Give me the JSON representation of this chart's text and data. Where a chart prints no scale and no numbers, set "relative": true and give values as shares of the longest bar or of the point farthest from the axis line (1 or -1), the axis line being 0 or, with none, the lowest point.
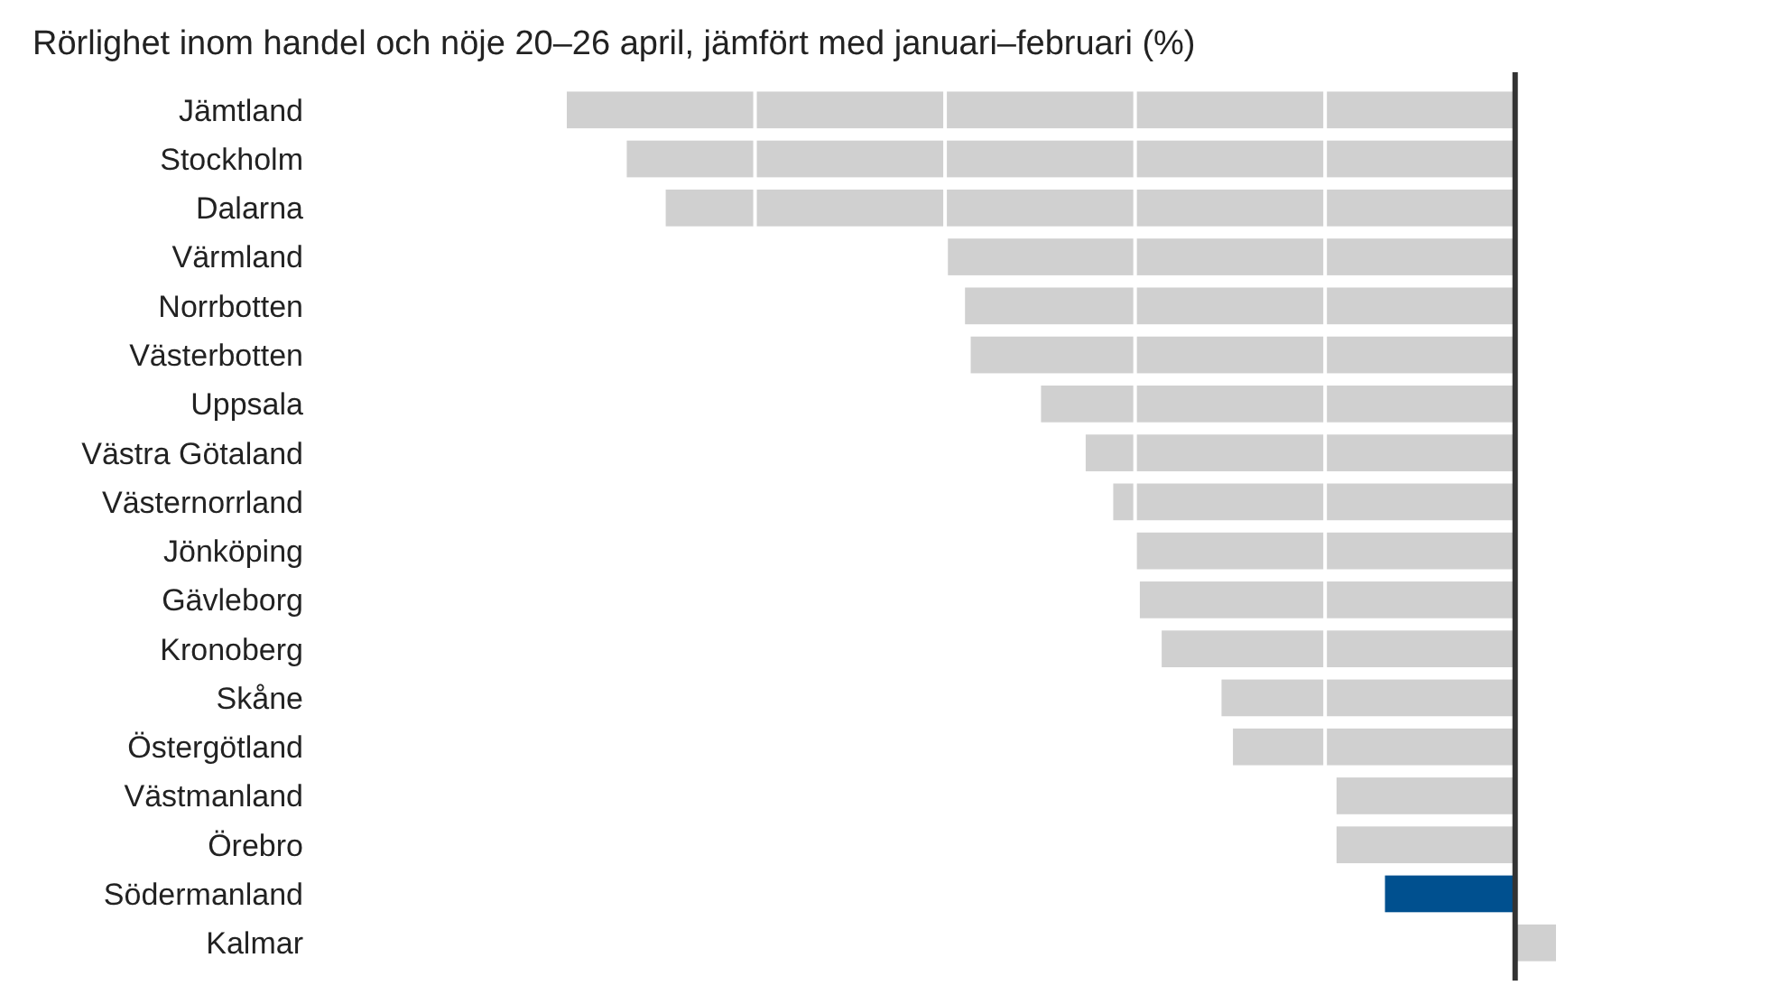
{
  "chart_data": {
    "type": "bar",
    "orientation": "horizontal",
    "relative": true,
    "title": "Rörlighet inom handel och nöje 20–26 april, jämfört med januari–februari (%)",
    "categories": [
      "Jämtland",
      "Stockholm",
      "Dalarna",
      "Värmland",
      "Norrbotten",
      "Västerbotten",
      "Uppsala",
      "Västra Götaland",
      "Västernorrland",
      "Jönköping",
      "Gävleborg",
      "Kronoberg",
      "Skåne",
      "Östergötland",
      "Västmanland",
      "Örebro",
      "Södermanland",
      "Kalmar"
    ],
    "values": [
      -1,
      -0.935,
      -0.894,
      -0.597,
      -0.579,
      -0.573,
      -0.499,
      -0.452,
      -0.423,
      -0.399,
      -0.395,
      -0.372,
      -0.309,
      -0.297,
      -0.188,
      -0.188,
      -0.137,
      0.043
    ],
    "colors": [
      "#d0d0d0",
      "#d0d0d0",
      "#d0d0d0",
      "#d0d0d0",
      "#d0d0d0",
      "#d0d0d0",
      "#d0d0d0",
      "#d0d0d0",
      "#d0d0d0",
      "#d0d0d0",
      "#d0d0d0",
      "#d0d0d0",
      "#d0d0d0",
      "#d0d0d0",
      "#d0d0d0",
      "#d0d0d0",
      "#00508f",
      "#d0d0d0"
    ],
    "grid": "x"
  }
}
